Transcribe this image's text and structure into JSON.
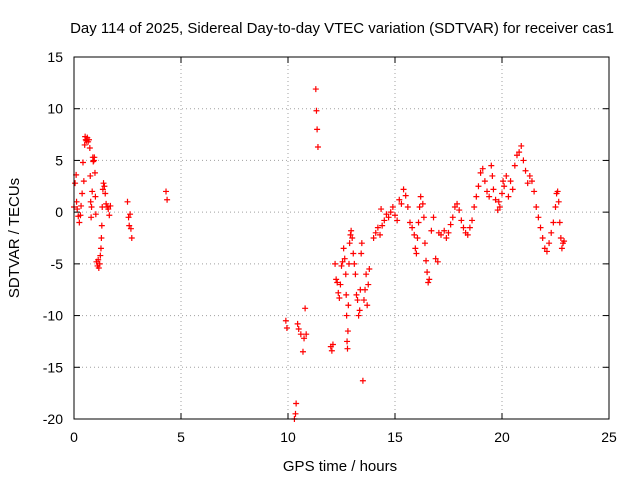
{
  "chart_data": {
    "type": "scatter",
    "title": "Day 114 of 2025, Sidereal Day-to-day VTEC variation (SDTVAR) for receiver cas1",
    "xlabel": "GPS time / hours",
    "ylabel": "SDTVAR / TECUs",
    "xlim": [
      0,
      25
    ],
    "ylim": [
      -20,
      15
    ],
    "xticks": [
      "0",
      "5",
      "10",
      "15",
      "20",
      "25"
    ],
    "yticks": [
      "15",
      "10",
      "5",
      "0",
      "-5",
      "-10",
      "-15",
      "-20"
    ],
    "grid": true,
    "marker": "+",
    "color": "#ff0000",
    "series": [
      {
        "name": "cas1",
        "points": [
          [
            0.0,
            0.5
          ],
          [
            0.05,
            2.8
          ],
          [
            0.1,
            3.6
          ],
          [
            0.12,
            1.0
          ],
          [
            0.15,
            0.3
          ],
          [
            0.2,
            -0.4
          ],
          [
            0.25,
            -1.0
          ],
          [
            0.3,
            -0.3
          ],
          [
            0.33,
            0.6
          ],
          [
            0.38,
            1.8
          ],
          [
            0.42,
            4.8
          ],
          [
            0.46,
            3.0
          ],
          [
            0.5,
            6.5
          ],
          [
            0.52,
            7.3
          ],
          [
            0.55,
            7.0
          ],
          [
            0.58,
            6.9
          ],
          [
            0.62,
            7.2
          ],
          [
            0.66,
            6.8
          ],
          [
            0.7,
            7.0
          ],
          [
            0.74,
            6.2
          ],
          [
            0.76,
            3.5
          ],
          [
            0.78,
            1.0
          ],
          [
            0.8,
            -0.5
          ],
          [
            0.82,
            0.5
          ],
          [
            0.85,
            2.0
          ],
          [
            0.88,
            5.3
          ],
          [
            0.9,
            4.9
          ],
          [
            0.93,
            5.0
          ],
          [
            0.95,
            5.3
          ],
          [
            0.98,
            3.8
          ],
          [
            1.0,
            1.5
          ],
          [
            1.02,
            -0.2
          ],
          [
            1.05,
            -4.8
          ],
          [
            1.1,
            -5.2
          ],
          [
            1.13,
            -4.6
          ],
          [
            1.16,
            -5.4
          ],
          [
            1.2,
            -5.0
          ],
          [
            1.23,
            -4.2
          ],
          [
            1.26,
            -3.5
          ],
          [
            1.28,
            -2.5
          ],
          [
            1.3,
            -1.3
          ],
          [
            1.32,
            0.5
          ],
          [
            1.35,
            2.2
          ],
          [
            1.38,
            2.8
          ],
          [
            1.42,
            2.5
          ],
          [
            1.46,
            1.8
          ],
          [
            1.5,
            0.8
          ],
          [
            1.55,
            0.5
          ],
          [
            1.6,
            0.3
          ],
          [
            1.65,
            -0.3
          ],
          [
            1.7,
            0.6
          ],
          [
            2.5,
            1.0
          ],
          [
            2.55,
            -0.5
          ],
          [
            2.58,
            -1.3
          ],
          [
            2.62,
            -0.2
          ],
          [
            2.66,
            -1.6
          ],
          [
            2.7,
            -2.5
          ],
          [
            4.3,
            2.0
          ],
          [
            4.35,
            1.2
          ],
          [
            9.9,
            -10.5
          ],
          [
            9.95,
            -11.2
          ],
          [
            10.3,
            -20.0
          ],
          [
            10.35,
            -19.5
          ],
          [
            10.38,
            -18.5
          ],
          [
            10.45,
            -10.8
          ],
          [
            10.5,
            -11.3
          ],
          [
            10.6,
            -11.8
          ],
          [
            10.7,
            -13.5
          ],
          [
            10.75,
            -12.2
          ],
          [
            10.8,
            -9.3
          ],
          [
            10.85,
            -11.8
          ],
          [
            11.3,
            11.9
          ],
          [
            11.33,
            9.8
          ],
          [
            11.36,
            8.0
          ],
          [
            11.4,
            6.3
          ],
          [
            12.0,
            -13.0
          ],
          [
            12.05,
            -13.4
          ],
          [
            12.1,
            -12.8
          ],
          [
            12.2,
            -5.0
          ],
          [
            12.25,
            -6.5
          ],
          [
            12.3,
            -6.8
          ],
          [
            12.35,
            -7.8
          ],
          [
            12.4,
            -8.3
          ],
          [
            12.45,
            -7.0
          ],
          [
            12.5,
            -5.2
          ],
          [
            12.55,
            -4.8
          ],
          [
            12.6,
            -3.5
          ],
          [
            12.65,
            -4.5
          ],
          [
            12.7,
            -6.0
          ],
          [
            12.72,
            -8.0
          ],
          [
            12.74,
            -10.0
          ],
          [
            12.76,
            -12.5
          ],
          [
            12.78,
            -13.2
          ],
          [
            12.8,
            -11.5
          ],
          [
            12.82,
            -9.0
          ],
          [
            12.85,
            -5.0
          ],
          [
            12.88,
            -3.0
          ],
          [
            12.92,
            -2.2
          ],
          [
            12.95,
            -1.8
          ],
          [
            13.0,
            -2.5
          ],
          [
            13.05,
            -4.0
          ],
          [
            13.1,
            -5.0
          ],
          [
            13.15,
            -6.0
          ],
          [
            13.2,
            -8.0
          ],
          [
            13.25,
            -8.5
          ],
          [
            13.3,
            -10.0
          ],
          [
            13.35,
            -9.5
          ],
          [
            13.38,
            -7.5
          ],
          [
            13.42,
            -4.0
          ],
          [
            13.45,
            -3.0
          ],
          [
            13.5,
            -16.3
          ],
          [
            13.55,
            -8.5
          ],
          [
            13.6,
            -7.5
          ],
          [
            13.65,
            -6.0
          ],
          [
            13.7,
            -9.0
          ],
          [
            13.75,
            -7.0
          ],
          [
            13.8,
            -5.5
          ],
          [
            14.0,
            -2.5
          ],
          [
            14.1,
            -2.0
          ],
          [
            14.2,
            -1.5
          ],
          [
            14.3,
            -2.2
          ],
          [
            14.35,
            0.3
          ],
          [
            14.4,
            -1.3
          ],
          [
            14.5,
            -0.8
          ],
          [
            14.6,
            -0.2
          ],
          [
            14.7,
            -0.5
          ],
          [
            14.8,
            0.0
          ],
          [
            14.9,
            0.5
          ],
          [
            15.0,
            -0.3
          ],
          [
            15.1,
            -0.8
          ],
          [
            15.2,
            1.2
          ],
          [
            15.3,
            0.8
          ],
          [
            15.4,
            2.2
          ],
          [
            15.5,
            1.6
          ],
          [
            15.6,
            0.5
          ],
          [
            15.7,
            -1.0
          ],
          [
            15.8,
            -1.5
          ],
          [
            15.9,
            -2.2
          ],
          [
            15.95,
            -3.5
          ],
          [
            16.0,
            -4.0
          ],
          [
            16.05,
            -2.5
          ],
          [
            16.1,
            -1.0
          ],
          [
            16.15,
            0.5
          ],
          [
            16.2,
            1.5
          ],
          [
            16.3,
            0.8
          ],
          [
            16.35,
            -0.5
          ],
          [
            16.4,
            -3.0
          ],
          [
            16.45,
            -4.7
          ],
          [
            16.5,
            -5.8
          ],
          [
            16.55,
            -6.8
          ],
          [
            16.6,
            -6.5
          ],
          [
            16.7,
            -1.8
          ],
          [
            16.8,
            -0.5
          ],
          [
            16.9,
            -4.5
          ],
          [
            17.0,
            -4.8
          ],
          [
            17.05,
            -2.0
          ],
          [
            17.15,
            -2.2
          ],
          [
            17.3,
            -1.8
          ],
          [
            17.4,
            -2.5
          ],
          [
            17.5,
            -2.0
          ],
          [
            17.6,
            -1.2
          ],
          [
            17.7,
            -0.5
          ],
          [
            17.8,
            0.5
          ],
          [
            17.9,
            0.8
          ],
          [
            18.0,
            0.2
          ],
          [
            18.1,
            -0.8
          ],
          [
            18.2,
            -1.5
          ],
          [
            18.3,
            -2.0
          ],
          [
            18.4,
            -2.2
          ],
          [
            18.5,
            -1.5
          ],
          [
            18.6,
            -0.8
          ],
          [
            18.7,
            0.5
          ],
          [
            18.8,
            1.5
          ],
          [
            18.9,
            2.5
          ],
          [
            19.0,
            3.8
          ],
          [
            19.1,
            4.2
          ],
          [
            19.2,
            3.0
          ],
          [
            19.3,
            2.0
          ],
          [
            19.4,
            1.5
          ],
          [
            19.5,
            4.5
          ],
          [
            19.55,
            3.5
          ],
          [
            19.6,
            2.2
          ],
          [
            19.7,
            1.2
          ],
          [
            19.8,
            0.2
          ],
          [
            19.85,
            1.0
          ],
          [
            19.9,
            0.5
          ],
          [
            20.0,
            1.8
          ],
          [
            20.05,
            3.0
          ],
          [
            20.1,
            2.5
          ],
          [
            20.2,
            3.5
          ],
          [
            20.3,
            1.5
          ],
          [
            20.4,
            3.0
          ],
          [
            20.5,
            2.2
          ],
          [
            20.6,
            4.5
          ],
          [
            20.7,
            5.5
          ],
          [
            20.8,
            5.8
          ],
          [
            20.9,
            6.4
          ],
          [
            21.0,
            5.0
          ],
          [
            21.1,
            4.0
          ],
          [
            21.2,
            2.8
          ],
          [
            21.3,
            3.5
          ],
          [
            21.4,
            3.0
          ],
          [
            21.5,
            2.0
          ],
          [
            21.6,
            0.5
          ],
          [
            21.7,
            -0.5
          ],
          [
            21.8,
            -1.5
          ],
          [
            21.9,
            -2.5
          ],
          [
            22.0,
            -3.5
          ],
          [
            22.1,
            -3.8
          ],
          [
            22.2,
            -3.0
          ],
          [
            22.3,
            -2.0
          ],
          [
            22.4,
            -1.0
          ],
          [
            22.5,
            0.5
          ],
          [
            22.55,
            1.8
          ],
          [
            22.6,
            2.0
          ],
          [
            22.65,
            1.0
          ],
          [
            22.7,
            -1.0
          ],
          [
            22.75,
            -2.5
          ],
          [
            22.8,
            -3.5
          ],
          [
            22.85,
            -3.0
          ],
          [
            22.9,
            -2.8
          ]
        ]
      }
    ]
  }
}
